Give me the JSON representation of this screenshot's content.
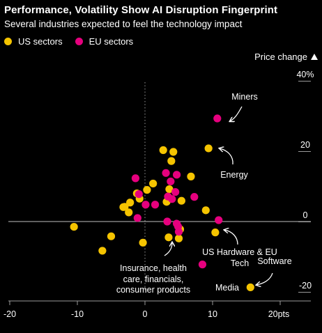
{
  "title": "Performance, Volatility Show AI Disruption Fingerprint",
  "subtitle": "Several industries expected to feel the technology impact",
  "colors": {
    "us": "#F5C400",
    "eu": "#E6007E",
    "background": "#000000",
    "axis": "#9a9a9a"
  },
  "chart_data": {
    "type": "scatter",
    "title": "Performance, Volatility Show AI Disruption Fingerprint",
    "subtitle": "Several industries expected to feel the technology impact",
    "xlabel": "",
    "ylabel": "Price change",
    "x_ticks": [
      "-20",
      "-10",
      "0",
      "10",
      "20pts"
    ],
    "x_tick_values": [
      -20,
      -10,
      0,
      10,
      20
    ],
    "y_ticks": [
      "40%",
      "20",
      "0",
      "-20"
    ],
    "y_tick_values": [
      40,
      20,
      0,
      -20
    ],
    "xlim": [
      -20,
      23
    ],
    "ylim": [
      -25,
      42
    ],
    "legend_placement": "top-left",
    "series": [
      {
        "name": "US sectors",
        "color": "#F5C400",
        "points": [
          {
            "x": 2.7,
            "y": 20.3
          },
          {
            "x": 4.2,
            "y": 19.8
          },
          {
            "x": 9.4,
            "y": 20.8
          },
          {
            "x": 3.9,
            "y": 17.2
          },
          {
            "x": 6.8,
            "y": 12.8
          },
          {
            "x": 1.2,
            "y": 10.8
          },
          {
            "x": 0.3,
            "y": 9.0
          },
          {
            "x": 3.6,
            "y": 9.2
          },
          {
            "x": -1.2,
            "y": 8.0
          },
          {
            "x": -0.8,
            "y": 6.5
          },
          {
            "x": -2.2,
            "y": 5.4
          },
          {
            "x": 5.4,
            "y": 5.9
          },
          {
            "x": -3.0,
            "y": 4.2
          },
          {
            "x": -3.2,
            "y": 4.1
          },
          {
            "x": 3.2,
            "y": 5.6
          },
          {
            "x": -2.4,
            "y": 2.6
          },
          {
            "x": 9.0,
            "y": 3.2
          },
          {
            "x": -10.5,
            "y": -1.5
          },
          {
            "x": 5.2,
            "y": -2.2
          },
          {
            "x": 10.4,
            "y": -3.1
          },
          {
            "x": -5.0,
            "y": -4.2
          },
          {
            "x": 3.5,
            "y": -4.5
          },
          {
            "x": 5.0,
            "y": -4.8
          },
          {
            "x": -0.3,
            "y": -6.0
          },
          {
            "x": -6.3,
            "y": -8.3
          },
          {
            "x": 15.6,
            "y": -18.7
          }
        ]
      },
      {
        "name": "EU sectors",
        "color": "#E6007E",
        "points": [
          {
            "x": 10.7,
            "y": 29.3
          },
          {
            "x": 3.1,
            "y": 13.8
          },
          {
            "x": -1.4,
            "y": 12.3
          },
          {
            "x": 4.7,
            "y": 13.3
          },
          {
            "x": 3.8,
            "y": 11.4
          },
          {
            "x": -0.9,
            "y": 7.8
          },
          {
            "x": 4.5,
            "y": 8.4
          },
          {
            "x": 3.4,
            "y": 7.1
          },
          {
            "x": 7.3,
            "y": 7.0
          },
          {
            "x": 4.0,
            "y": 6.4
          },
          {
            "x": 0.1,
            "y": 4.8
          },
          {
            "x": 1.5,
            "y": 4.8
          },
          {
            "x": -1.1,
            "y": 1.0
          },
          {
            "x": 3.3,
            "y": 0.0
          },
          {
            "x": 10.9,
            "y": 0.4
          },
          {
            "x": 4.7,
            "y": -0.6
          },
          {
            "x": 5.0,
            "y": -2.9
          },
          {
            "x": 8.5,
            "y": -12.2
          },
          {
            "x": 4.9,
            "y": -1.4
          }
        ]
      }
    ],
    "annotations": [
      "Miners",
      "Energy",
      "US Hardware & EU",
      "Tech",
      "Software",
      "Insurance, health",
      "care, financials,",
      "consumer products",
      "Media"
    ]
  }
}
